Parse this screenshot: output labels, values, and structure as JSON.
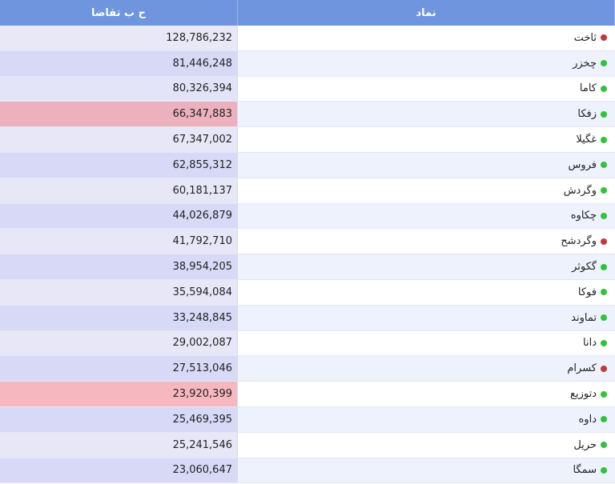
{
  "header": {
    "value_col": "ح ب تقاضا",
    "symbol_col": "نماد"
  },
  "colors": {
    "up": "#2ec43a",
    "down": "#c0393b"
  },
  "rows": [
    {
      "symbol": "ثاخت",
      "value": "128,786,232",
      "status": "down",
      "val_bg": "#e8e8f7",
      "sym_bg": "#ffffff"
    },
    {
      "symbol": "چخزر",
      "value": "81,446,248",
      "status": "up",
      "val_bg": "#d8d9f7",
      "sym_bg": "#edf2fd"
    },
    {
      "symbol": "کاما",
      "value": "80,326,394",
      "status": "up",
      "val_bg": "#e4e4f8",
      "sym_bg": "#ffffff"
    },
    {
      "symbol": "زفکا",
      "value": "66,347,883",
      "status": "up",
      "val_bg": "#ecb1bd",
      "sym_bg": "#edf2fd"
    },
    {
      "symbol": "غگیلا",
      "value": "67,347,002",
      "status": "up",
      "val_bg": "#e7e7f8",
      "sym_bg": "#ffffff"
    },
    {
      "symbol": "فروس",
      "value": "62,855,312",
      "status": "up",
      "val_bg": "#d8d9f7",
      "sym_bg": "#edf2fd"
    },
    {
      "symbol": "وگردش",
      "value": "60,181,137",
      "status": "up",
      "val_bg": "#e7e7f8",
      "sym_bg": "#ffffff"
    },
    {
      "symbol": "چکاوه",
      "value": "44,026,879",
      "status": "up",
      "val_bg": "#d8d9f7",
      "sym_bg": "#edf2fd"
    },
    {
      "symbol": "وگردشح",
      "value": "41,792,710",
      "status": "down",
      "val_bg": "#e7e7f8",
      "sym_bg": "#ffffff"
    },
    {
      "symbol": "گکوثر",
      "value": "38,954,205",
      "status": "up",
      "val_bg": "#d8d9f7",
      "sym_bg": "#edf2fd"
    },
    {
      "symbol": "فوکا",
      "value": "35,594,084",
      "status": "up",
      "val_bg": "#e7e7f8",
      "sym_bg": "#ffffff"
    },
    {
      "symbol": "تماوند",
      "value": "33,248,845",
      "status": "up",
      "val_bg": "#d8d9f7",
      "sym_bg": "#edf2fd"
    },
    {
      "symbol": "دانا",
      "value": "29,002,087",
      "status": "up",
      "val_bg": "#e7e7f8",
      "sym_bg": "#ffffff"
    },
    {
      "symbol": "کسرام",
      "value": "27,513,046",
      "status": "down",
      "val_bg": "#d8d9f7",
      "sym_bg": "#edf2fd"
    },
    {
      "symbol": "دتوزیع",
      "value": "23,920,399",
      "status": "up",
      "val_bg": "#f7b7bf",
      "sym_bg": "#ffffff"
    },
    {
      "symbol": "داوه",
      "value": "25,469,395",
      "status": "up",
      "val_bg": "#d8d9f7",
      "sym_bg": "#edf2fd"
    },
    {
      "symbol": "حریل",
      "value": "25,241,546",
      "status": "up",
      "val_bg": "#e7e7f8",
      "sym_bg": "#ffffff"
    },
    {
      "symbol": "سمگا",
      "value": "23,060,647",
      "status": "up",
      "val_bg": "#d8d9f7",
      "sym_bg": "#edf2fd"
    }
  ]
}
